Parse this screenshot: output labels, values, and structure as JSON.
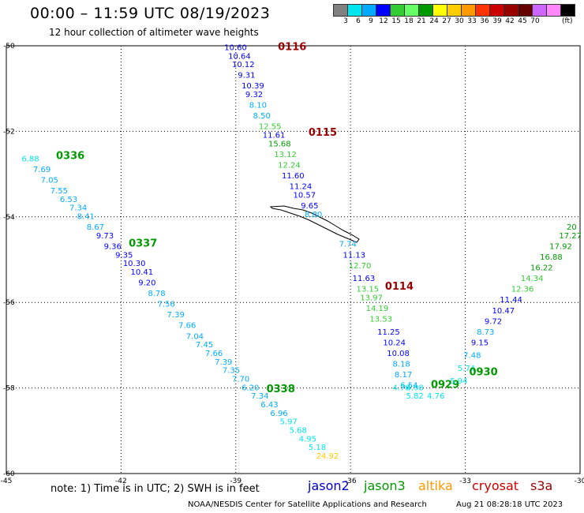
{
  "header": {
    "title": "00:00 – 11:59 UTC 08/19/2023",
    "subtitle": "12 hour collection of altimeter wave heights"
  },
  "color_scale": {
    "labels": [
      "3",
      "6",
      "9",
      "12",
      "15",
      "18",
      "21",
      "24",
      "27",
      "30",
      "33",
      "36",
      "39",
      "42",
      "45",
      "70"
    ],
    "colors": [
      "#808080",
      "#00e5ee",
      "#00aaff",
      "#0000ff",
      "#33cc33",
      "#66ff66",
      "#009900",
      "#ffff00",
      "#ffcc00",
      "#ff9900",
      "#ff3300",
      "#cc0000",
      "#990000",
      "#660000",
      "#cc66ff",
      "#ff88ff",
      "#000000"
    ],
    "unit": "(ft)"
  },
  "footer": {
    "note": "note: 1) Time is in UTC; 2) SWH is in feet",
    "satellites": [
      {
        "name": "jason2",
        "color": "#0000cc"
      },
      {
        "name": "jason3",
        "color": "#009900"
      },
      {
        "name": "altika",
        "color": "#ff9900"
      },
      {
        "name": "cryosat",
        "color": "#cc0000"
      },
      {
        "name": "s3a",
        "color": "#990000"
      }
    ],
    "credit": "NOAA/NESDIS Center for Satellite Applications and Research",
    "timestamp": "Aug 21 08:28:18 UTC 2023"
  },
  "chart_data": {
    "type": "scatter",
    "xlim": [
      -45,
      -30
    ],
    "ylim": [
      -60,
      -50
    ],
    "xticks": [
      -45,
      -42,
      -39,
      -36,
      -33,
      -30
    ],
    "xtick_labels": [
      "-45",
      "-42",
      "-39",
      "-36",
      "-33",
      "-30"
    ],
    "yticks": [
      -50,
      -52,
      -54,
      -56,
      -58,
      -60
    ],
    "ytick_labels": [
      "-50",
      "-52",
      "-54",
      "-56",
      "-58",
      "-60"
    ],
    "grid": true,
    "passes": [
      {
        "label": "0116",
        "color": "#990000",
        "label_pos": [
          -37.9,
          -50.1
        ],
        "points": [
          [
            -39.3,
            -50.1,
            "10.60",
            "#0000ff"
          ],
          [
            -39.2,
            -50.3,
            "10.64",
            "#0000ff"
          ],
          [
            -39.1,
            -50.5,
            "10.12",
            "#0000ff"
          ],
          [
            -38.95,
            -50.75,
            "9.31",
            "#0000ff"
          ],
          [
            -38.85,
            -51.0,
            "10.39",
            "#0000ff"
          ],
          [
            -38.75,
            -51.2,
            "9.32",
            "#0000ff"
          ],
          [
            -38.65,
            -51.45,
            "8.10",
            "#00aaff"
          ],
          [
            -38.55,
            -51.7,
            "8.50",
            "#00aaff"
          ],
          [
            -38.4,
            -51.95,
            "12.55",
            "#33cc33"
          ]
        ]
      },
      {
        "label": "0115",
        "color": "#990000",
        "label_pos": [
          -37.1,
          -52.1
        ],
        "points": [
          [
            -38.3,
            -52.15,
            "11.61",
            "#0000ff"
          ],
          [
            -38.15,
            -52.35,
            "15.68",
            "#009900"
          ],
          [
            -38.0,
            -52.6,
            "13.12",
            "#33cc33"
          ],
          [
            -37.9,
            -52.85,
            "12.24",
            "#33cc33"
          ],
          [
            -37.8,
            -53.1,
            "11.60",
            "#0000ff"
          ],
          [
            -37.6,
            -53.35,
            "11.24",
            "#0000ff"
          ],
          [
            -37.5,
            -53.55,
            "10.57",
            "#0000ff"
          ],
          [
            -37.3,
            -53.8,
            "9.65",
            "#0000ff"
          ],
          [
            -37.2,
            -54.0,
            "8.80",
            "#00aaff"
          ]
        ]
      },
      {
        "label": "0114",
        "color": "#990000",
        "label_pos": [
          -35.1,
          -55.7
        ],
        "points": [
          [
            -36.3,
            -54.7,
            "7.74",
            "#00aaff"
          ],
          [
            -36.2,
            -54.95,
            "11.13",
            "#0000ff"
          ],
          [
            -36.05,
            -55.2,
            "12.70",
            "#33cc33"
          ],
          [
            -35.95,
            -55.5,
            "11.63",
            "#0000ff"
          ],
          [
            -35.85,
            -55.75,
            "13.15",
            "#33cc33"
          ],
          [
            -35.75,
            -55.95,
            "13.97",
            "#33cc33"
          ],
          [
            -35.6,
            -56.2,
            "14.19",
            "#33cc33"
          ],
          [
            -35.5,
            -56.45,
            "13.53",
            "#33cc33"
          ],
          [
            -35.3,
            -56.75,
            "11.25",
            "#0000ff"
          ],
          [
            -35.15,
            -57.0,
            "10.24",
            "#0000ff"
          ],
          [
            -35.05,
            -57.25,
            "10.08",
            "#0000ff"
          ],
          [
            -34.9,
            -57.5,
            "8.18",
            "#00aaff"
          ],
          [
            -34.85,
            -57.75,
            "8.17",
            "#00aaff"
          ],
          [
            -34.7,
            -58.0,
            "6.54",
            "#00aaff"
          ],
          [
            -34.55,
            -58.25,
            "5.82",
            "#00e5ee"
          ]
        ]
      },
      {
        "label": "0929",
        "color": "#009900",
        "label_pos": [
          -33.9,
          -58.0
        ],
        "points": [
          [
            -34.9,
            -58.05,
            "4.78",
            "#00e5ee"
          ],
          [
            -34.55,
            -58.05,
            "4.98",
            "#00e5ee"
          ],
          [
            -34.0,
            -58.25,
            "4.76",
            "#00e5ee"
          ]
        ]
      },
      {
        "label": "0930",
        "color": "#009900",
        "label_pos": [
          -32.9,
          -57.7
        ],
        "points": [
          [
            -33.4,
            -57.9,
            "5.94",
            "#00e5ee"
          ],
          [
            -33.2,
            -57.6,
            "5.74",
            "#00e5ee"
          ],
          [
            -33.05,
            -57.3,
            "7.48",
            "#00aaff"
          ],
          [
            -32.85,
            -57.0,
            "9.15",
            "#0000ff"
          ],
          [
            -32.7,
            -56.75,
            "8.73",
            "#00aaff"
          ],
          [
            -32.5,
            -56.5,
            "9.72",
            "#0000ff"
          ],
          [
            -32.3,
            -56.25,
            "10.47",
            "#0000ff"
          ],
          [
            -32.1,
            -56.0,
            "11.44",
            "#0000ff"
          ],
          [
            -31.8,
            -55.75,
            "12.36",
            "#33cc33"
          ],
          [
            -31.55,
            -55.5,
            "14.34",
            "#33cc33"
          ],
          [
            -31.3,
            -55.25,
            "16.22",
            "#009900"
          ],
          [
            -31.05,
            -55.0,
            "16.88",
            "#009900"
          ],
          [
            -30.8,
            -54.75,
            "17.92",
            "#009900"
          ],
          [
            -30.55,
            -54.5,
            "17.27",
            "#009900"
          ],
          [
            -30.35,
            -54.3,
            "20",
            "#009900"
          ]
        ]
      },
      {
        "label": "0336",
        "color": "#009900",
        "label_pos": [
          -43.7,
          -52.65
        ],
        "points": [
          [
            -44.6,
            -52.7,
            "6.88",
            "#00e5ee"
          ],
          [
            -44.3,
            -52.95,
            "7.69",
            "#00aaff"
          ],
          [
            -44.1,
            -53.2,
            "7.05",
            "#00aaff"
          ],
          [
            -43.85,
            -53.45,
            "7.55",
            "#00aaff"
          ],
          [
            -43.6,
            -53.65,
            "6.53",
            "#00aaff"
          ],
          [
            -43.35,
            -53.85,
            "7.34",
            "#00aaff"
          ],
          [
            -43.15,
            -54.05,
            "8.41",
            "#00aaff"
          ],
          [
            -42.9,
            -54.3,
            "8.67",
            "#00aaff"
          ],
          [
            -42.65,
            -54.5,
            "9.73",
            "#0000ff"
          ],
          [
            -42.45,
            -54.75,
            "9.36",
            "#0000ff"
          ]
        ]
      },
      {
        "label": "0337",
        "color": "#009900",
        "label_pos": [
          -41.8,
          -54.7
        ],
        "points": [
          [
            -42.15,
            -54.95,
            "9.35",
            "#0000ff"
          ],
          [
            -41.95,
            -55.15,
            "10.30",
            "#0000ff"
          ],
          [
            -41.75,
            -55.35,
            "10.41",
            "#0000ff"
          ],
          [
            -41.55,
            -55.6,
            "9.20",
            "#0000ff"
          ],
          [
            -41.3,
            -55.85,
            "8.78",
            "#00aaff"
          ],
          [
            -41.05,
            -56.1,
            "7.56",
            "#00aaff"
          ],
          [
            -40.8,
            -56.35,
            "7.39",
            "#00aaff"
          ],
          [
            -40.5,
            -56.6,
            "7.66",
            "#00aaff"
          ],
          [
            -40.3,
            -56.85,
            "7.04",
            "#00aaff"
          ],
          [
            -40.05,
            -57.05,
            "7.45",
            "#00aaff"
          ],
          [
            -39.8,
            -57.25,
            "7.66",
            "#00aaff"
          ],
          [
            -39.55,
            -57.45,
            "7.39",
            "#00aaff"
          ],
          [
            -39.35,
            -57.65,
            "7.35",
            "#00aaff"
          ],
          [
            -39.1,
            -57.85,
            "7.70",
            "#00aaff"
          ],
          [
            -38.85,
            -58.05,
            "6.20",
            "#00aaff"
          ]
        ]
      },
      {
        "label": "0338",
        "color": "#009900",
        "label_pos": [
          -38.2,
          -58.1
        ],
        "points": [
          [
            -38.6,
            -58.25,
            "7.34",
            "#00aaff"
          ],
          [
            -38.35,
            -58.45,
            "6.43",
            "#00aaff"
          ],
          [
            -38.1,
            -58.65,
            "6.96",
            "#00aaff"
          ],
          [
            -37.85,
            -58.85,
            "5.97",
            "#00e5ee"
          ],
          [
            -37.6,
            -59.05,
            "5.68",
            "#00e5ee"
          ],
          [
            -37.35,
            -59.25,
            "4.95",
            "#00e5ee"
          ],
          [
            -37.1,
            -59.45,
            "5.18",
            "#00e5ee"
          ],
          [
            -36.9,
            -59.65,
            "24.92",
            "#ffcc00"
          ]
        ]
      }
    ]
  }
}
